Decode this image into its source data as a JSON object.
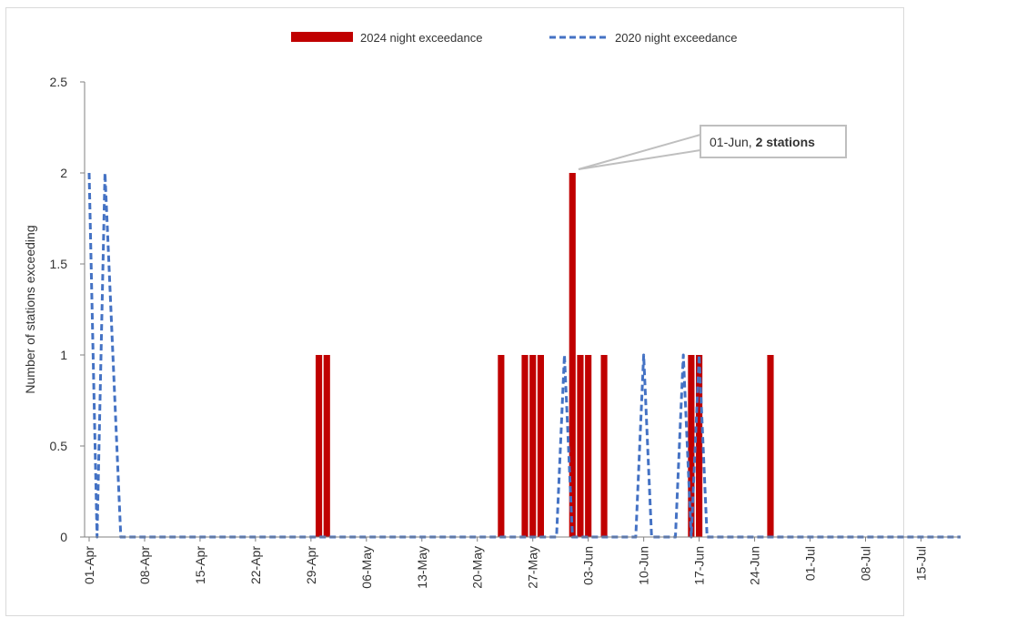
{
  "header_fragment": "",
  "chart_data": {
    "type": "bar",
    "title": "",
    "ylabel": "Number of stations exceeding",
    "xlabel": "",
    "ylim": [
      0,
      2.5
    ],
    "yticks": [
      0,
      0.5,
      1,
      1.5,
      2,
      2.5
    ],
    "ytick_labels": [
      "0",
      "0.5",
      "1",
      "1.5",
      "2",
      "2.5"
    ],
    "x_start": "2024-04-01",
    "x_end": "2024-07-20",
    "xtick_labels": [
      "01-Apr",
      "08-Apr",
      "15-Apr",
      "22-Apr",
      "29-Apr",
      "06-May",
      "13-May",
      "20-May",
      "27-May",
      "03-Jun",
      "10-Jun",
      "17-Jun",
      "24-Jun",
      "01-Jul",
      "08-Jul",
      "15-Jul"
    ],
    "xticks": [
      "2024-04-01",
      "2024-04-08",
      "2024-04-15",
      "2024-04-22",
      "2024-04-29",
      "2024-05-06",
      "2024-05-13",
      "2024-05-20",
      "2024-05-27",
      "2024-06-03",
      "2024-06-10",
      "2024-06-17",
      "2024-06-24",
      "2024-07-01",
      "2024-07-08",
      "2024-07-15"
    ],
    "legend_position": "top-center",
    "series": [
      {
        "name": "2024 night exceedance",
        "type": "bar",
        "color": "#c00000",
        "points": [
          {
            "x": "2024-04-30",
            "y": 1
          },
          {
            "x": "2024-05-01",
            "y": 1
          },
          {
            "x": "2024-05-23",
            "y": 1
          },
          {
            "x": "2024-05-26",
            "y": 1
          },
          {
            "x": "2024-05-27",
            "y": 1
          },
          {
            "x": "2024-05-28",
            "y": 1
          },
          {
            "x": "2024-06-01",
            "y": 2
          },
          {
            "x": "2024-06-02",
            "y": 1
          },
          {
            "x": "2024-06-03",
            "y": 1
          },
          {
            "x": "2024-06-05",
            "y": 1
          },
          {
            "x": "2024-06-16",
            "y": 1
          },
          {
            "x": "2024-06-17",
            "y": 1
          },
          {
            "x": "2024-06-26",
            "y": 1
          }
        ]
      },
      {
        "name": "2020 night exceedance",
        "type": "line",
        "style": "dashed",
        "color": "#4472c4",
        "points": [
          {
            "x": "2024-04-01",
            "y": 2
          },
          {
            "x": "2024-04-02",
            "y": 0
          },
          {
            "x": "2024-04-03",
            "y": 2
          },
          {
            "x": "2024-04-05",
            "y": 0
          },
          {
            "x": "2024-05-30",
            "y": 0
          },
          {
            "x": "2024-05-31",
            "y": 1
          },
          {
            "x": "2024-06-01",
            "y": 0
          },
          {
            "x": "2024-06-09",
            "y": 0
          },
          {
            "x": "2024-06-10",
            "y": 1
          },
          {
            "x": "2024-06-11",
            "y": 0
          },
          {
            "x": "2024-06-14",
            "y": 0
          },
          {
            "x": "2024-06-15",
            "y": 1
          },
          {
            "x": "2024-06-16",
            "y": 0
          },
          {
            "x": "2024-06-17",
            "y": 1
          },
          {
            "x": "2024-06-18",
            "y": 0
          },
          {
            "x": "2024-07-20",
            "y": 0
          }
        ]
      }
    ],
    "annotation": {
      "x": "2024-06-01",
      "y": 2,
      "prefix": "01-Jun, ",
      "bold": "2 stations"
    }
  }
}
